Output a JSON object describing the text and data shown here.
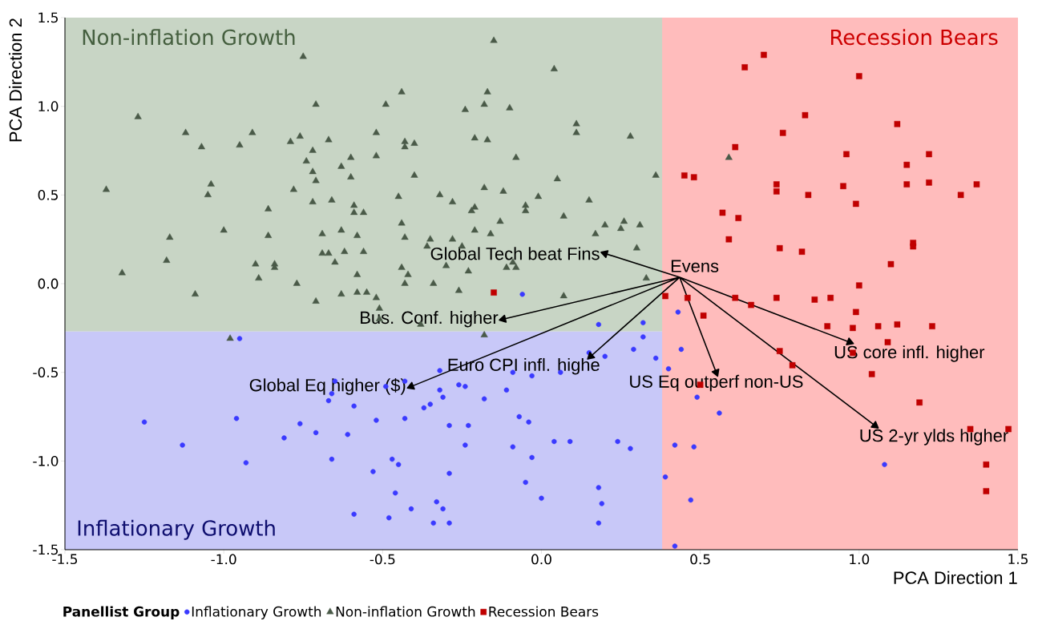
{
  "chart_data": {
    "type": "scatter",
    "xlabel": "PCA Direction 1",
    "ylabel": "PCA Direction 2",
    "legend_title": "Panellist Group",
    "legend": "bottom",
    "xlim": [
      -1.5,
      1.5
    ],
    "ylim": [
      -1.5,
      1.5
    ],
    "xticks": [
      {
        "value": -1.5,
        "label": "-1.5"
      },
      {
        "value": -1,
        "label": "-1.0"
      },
      {
        "value": -0.5,
        "label": "-0.5"
      },
      {
        "value": 0,
        "label": "0.0"
      },
      {
        "value": 0.5,
        "label": "0.5"
      },
      {
        "value": 1,
        "label": "1.0"
      },
      {
        "value": 1.5,
        "label": "1.5"
      }
    ],
    "yticks": [
      {
        "value": -1.5,
        "label": "-1.5"
      },
      {
        "value": -1,
        "label": "-1.0"
      },
      {
        "value": -0.5,
        "label": "-0.5"
      },
      {
        "value": 0,
        "label": "0.0"
      },
      {
        "value": 0.5,
        "label": "0.5"
      },
      {
        "value": 1,
        "label": "1.0"
      },
      {
        "value": 1.5,
        "label": "1.5"
      }
    ],
    "bands": [
      {
        "axis": "y",
        "from": -0.27,
        "to": 1.5,
        "label": "Non-inflation Growth",
        "color": "#c8d5c5"
      },
      {
        "axis": "y",
        "from": -1.5,
        "to": -0.27,
        "label": "Inflationary Growth",
        "color": "#c8c8f8"
      },
      {
        "axis": "x",
        "from": 0.38,
        "to": 1.5,
        "label": "Recession Bears",
        "color": "#ffbcbc"
      }
    ],
    "series": [
      {
        "name": "Inflationary Growth",
        "marker": "circle",
        "color": "#3a3aff",
        "x": [
          -0.95,
          -0.65,
          -0.66,
          -0.67,
          -0.59,
          -0.52,
          -1.25,
          -0.96,
          -0.76,
          -0.71,
          -0.61,
          -0.81,
          -1.13,
          -0.93,
          -0.66,
          -0.53,
          -0.59,
          -0.06,
          0.43,
          0.18,
          0.32,
          0.32,
          0.29,
          0.44,
          0.15,
          0.2,
          0.36,
          0.4,
          -0.32,
          -0.09,
          -0.03,
          0.06,
          -0.49,
          -0.43,
          -0.32,
          -0.31,
          -0.26,
          -0.24,
          -0.18,
          -0.11,
          -0.35,
          -0.37,
          -0.43,
          -0.29,
          -0.23,
          -0.07,
          -0.04,
          -0.24,
          -0.09,
          0.04,
          0.09,
          0.24,
          0.28,
          0.42,
          0.48,
          -0.03,
          -0.47,
          -0.45,
          -0.29,
          0.39,
          -0.05,
          0.18,
          -0.46,
          0.0,
          0.47,
          0.19,
          -0.33,
          -0.41,
          -0.31,
          -0.48,
          -0.34,
          -0.29,
          0.18,
          0.42,
          0.49,
          0.56,
          1.08
        ],
        "values": [
          -0.31,
          -0.55,
          -0.62,
          -0.66,
          -0.69,
          -0.77,
          -0.78,
          -0.76,
          -0.79,
          -0.84,
          -0.85,
          -0.87,
          -0.91,
          -1.01,
          -0.99,
          -1.06,
          -1.3,
          -0.06,
          -0.16,
          -0.23,
          -0.22,
          -0.3,
          -0.37,
          -0.37,
          -0.39,
          -0.41,
          -0.42,
          -0.48,
          -0.49,
          -0.5,
          -0.52,
          -0.5,
          -0.58,
          -0.55,
          -0.6,
          -0.64,
          -0.57,
          -0.58,
          -0.65,
          -0.6,
          -0.68,
          -0.7,
          -0.76,
          -0.8,
          -0.8,
          -0.75,
          -0.78,
          -0.91,
          -0.92,
          -0.89,
          -0.89,
          -0.89,
          -0.93,
          -0.91,
          -0.92,
          -0.98,
          -0.99,
          -1.02,
          -1.07,
          -1.09,
          -1.12,
          -1.15,
          -1.18,
          -1.21,
          -1.22,
          -1.24,
          -1.23,
          -1.27,
          -1.27,
          -1.32,
          -1.35,
          -1.35,
          -1.35,
          -1.48,
          -0.64,
          -0.73,
          -1.02
        ]
      },
      {
        "name": "Non-inflation Growth",
        "marker": "triangle",
        "color": "#4a5a48",
        "x": [
          -0.75,
          -0.71,
          -1.27,
          -1.12,
          -1.07,
          -0.91,
          -0.95,
          -0.79,
          -0.76,
          -0.67,
          -0.72,
          -0.74,
          -0.72,
          -0.71,
          -0.6,
          -0.63,
          -0.6,
          -0.52,
          -0.52,
          -1.37,
          -1.04,
          -1.05,
          -0.78,
          -0.72,
          -0.66,
          -0.59,
          -0.59,
          -0.56,
          -0.86,
          -1.0,
          -1.17,
          -0.86,
          -0.69,
          -0.63,
          -0.58,
          -1.18,
          -0.9,
          -0.84,
          -0.84,
          -0.69,
          -0.67,
          -0.62,
          -0.56,
          -0.65,
          -1.32,
          -0.89,
          -0.77,
          -0.58,
          -1.09,
          -0.71,
          -0.63,
          -0.58,
          -0.55,
          -0.52,
          -0.51,
          -0.98,
          -0.15,
          0.04,
          -0.44,
          -0.49,
          -0.17,
          -0.18,
          -0.24,
          -0.1,
          0.11,
          0.11,
          0.28,
          -0.21,
          -0.17,
          -0.43,
          -0.43,
          -0.4,
          -0.08,
          -0.4,
          0.05,
          0.36,
          -0.18,
          -0.12,
          -0.45,
          -0.32,
          -0.28,
          -0.01,
          0.15,
          -0.21,
          -0.22,
          -0.05,
          -0.05,
          0.07,
          -0.44,
          -0.13,
          0.2,
          0.26,
          0.25,
          0.31,
          0.17,
          -0.21,
          -0.16,
          -0.43,
          -0.35,
          -0.28,
          0.3,
          -0.36,
          -0.25,
          -0.44,
          -0.42,
          -0.3,
          -0.23,
          -0.11,
          -0.08,
          -0.09,
          -0.43,
          -0.34,
          0.33,
          0.59,
          -0.26,
          0.07,
          -0.38,
          -0.18,
          -0.51
        ],
        "values": [
          1.28,
          1.01,
          0.94,
          0.85,
          0.77,
          0.85,
          0.78,
          0.8,
          0.83,
          0.81,
          0.75,
          0.69,
          0.63,
          0.58,
          0.71,
          0.66,
          0.6,
          0.85,
          0.72,
          0.53,
          0.56,
          0.5,
          0.53,
          0.46,
          0.47,
          0.44,
          0.4,
          0.4,
          0.42,
          0.3,
          0.26,
          0.27,
          0.28,
          0.3,
          0.27,
          0.13,
          0.11,
          0.11,
          0.09,
          0.17,
          0.17,
          0.18,
          0.18,
          0.12,
          0.06,
          0.03,
          0.0,
          0.05,
          -0.06,
          -0.1,
          -0.06,
          -0.05,
          -0.05,
          -0.08,
          -0.14,
          -0.31,
          1.37,
          1.21,
          1.08,
          1.01,
          1.08,
          1.01,
          0.98,
          0.99,
          0.9,
          0.85,
          0.83,
          0.82,
          0.81,
          0.8,
          0.77,
          0.79,
          0.71,
          0.61,
          0.59,
          0.61,
          0.54,
          0.52,
          0.49,
          0.5,
          0.46,
          0.49,
          0.47,
          0.43,
          0.41,
          0.44,
          0.41,
          0.38,
          0.34,
          0.35,
          0.33,
          0.35,
          0.31,
          0.33,
          0.28,
          0.3,
          0.28,
          0.26,
          0.25,
          0.25,
          0.2,
          0.21,
          0.21,
          0.09,
          0.05,
          0.1,
          0.07,
          0.09,
          0.09,
          0.12,
          0.0,
          0.0,
          0.03,
          0.71,
          -0.04,
          -0.07,
          -0.23,
          -0.29,
          -0.2
        ]
      },
      {
        "name": "Recession Bears",
        "marker": "square",
        "color": "#c00000",
        "x": [
          0.7,
          0.64,
          1.0,
          0.83,
          1.12,
          0.76,
          0.61,
          0.96,
          1.22,
          1.15,
          0.48,
          0.74,
          0.74,
          0.84,
          0.95,
          0.99,
          1.15,
          1.22,
          1.37,
          1.32,
          0.57,
          0.62,
          0.59,
          0.75,
          0.82,
          1.17,
          1.17,
          1.1,
          1.0,
          0.45,
          -0.15,
          0.39,
          0.46,
          0.51,
          0.61,
          0.66,
          0.74,
          0.86,
          0.91,
          0.99,
          0.9,
          0.98,
          1.06,
          1.12,
          1.23,
          1.09,
          0.98,
          0.75,
          0.79,
          1.04,
          0.5,
          1.19,
          1.35,
          1.47,
          1.4,
          1.4
        ],
        "values": [
          1.29,
          1.22,
          1.17,
          0.95,
          0.9,
          0.85,
          0.77,
          0.73,
          0.73,
          0.67,
          0.6,
          0.56,
          0.52,
          0.5,
          0.55,
          0.45,
          0.56,
          0.57,
          0.56,
          0.5,
          0.4,
          0.37,
          0.25,
          0.2,
          0.18,
          0.23,
          0.21,
          0.11,
          -0.01,
          0.61,
          -0.05,
          -0.07,
          -0.08,
          -0.18,
          -0.08,
          -0.12,
          -0.08,
          -0.09,
          -0.08,
          -0.16,
          -0.24,
          -0.25,
          -0.24,
          -0.23,
          -0.24,
          -0.33,
          -0.39,
          -0.38,
          -0.46,
          -0.51,
          -0.57,
          -0.67,
          -0.82,
          -0.82,
          -1.02,
          -1.17
        ]
      },
      {
        "type": "line",
        "marker": "triangle",
        "color": "#000000",
        "x": [
          0.435,
          0.2,
          0.435,
          -0.12,
          0.435,
          -0.41,
          0.435,
          0.155,
          0.435,
          0.55,
          0.435,
          1.05,
          0.435,
          0.97
        ],
        "values": [
          0.036,
          0.17,
          0.036,
          -0.2,
          0.036,
          -0.58,
          0.036,
          -0.41,
          0.036,
          -0.5,
          0.036,
          -0.8,
          0.036,
          -0.33
        ]
      }
    ],
    "annotations": [
      {
        "text": "Evens",
        "x": 0.435,
        "y": 0.036
      },
      {
        "text": "Global Tech beat Fins",
        "x": 0.2,
        "y": 0.17
      },
      {
        "text": "Bus. Conf. higher",
        "x": -0.12,
        "y": -0.2
      },
      {
        "text": "Global Eq higher ($)",
        "x": -0.41,
        "y": -0.58
      },
      {
        "text": "Euro CPI infl. highe",
        "x": 0.155,
        "y": -0.41
      },
      {
        "text": "US Eq outperf non-US",
        "x": 0.55,
        "y": -0.5
      },
      {
        "text": "US 2-yr ylds higher",
        "x": 1.05,
        "y": -0.8
      },
      {
        "text": "US core infl. higher",
        "x": 0.97,
        "y": -0.33
      }
    ]
  }
}
